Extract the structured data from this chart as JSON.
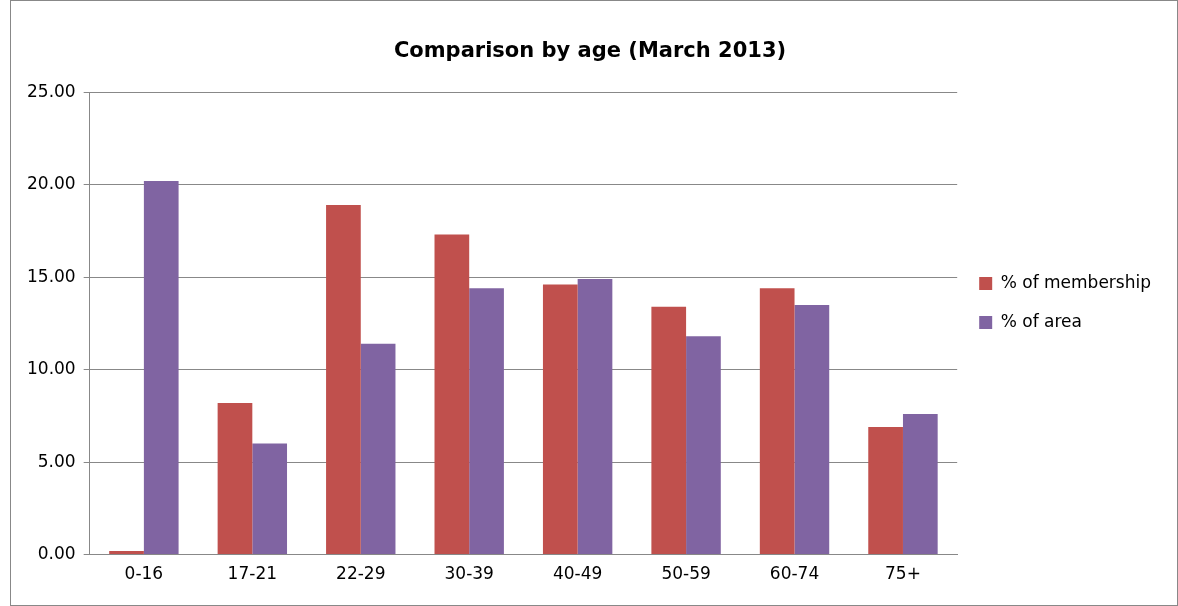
{
  "chart_data": {
    "type": "bar",
    "title": "Comparison by age (March 2013)",
    "categories": [
      "0-16",
      "17-21",
      "22-29",
      "30-39",
      "40-49",
      "50-59",
      "60-74",
      "75+"
    ],
    "series": [
      {
        "name": "% of membership",
        "color": "#c0504d",
        "values": [
          0.2,
          8.2,
          18.9,
          17.3,
          14.6,
          13.4,
          14.4,
          6.9
        ]
      },
      {
        "name": "% of area",
        "color": "#8064a2",
        "values": [
          20.2,
          6.0,
          11.4,
          14.4,
          14.9,
          11.8,
          13.5,
          7.6
        ]
      }
    ],
    "ylim": [
      0,
      25
    ],
    "yticks": [
      {
        "value": 0,
        "label": "0.00"
      },
      {
        "value": 5,
        "label": "5.00"
      },
      {
        "value": 10,
        "label": "10.00"
      },
      {
        "value": 15,
        "label": "15.00"
      },
      {
        "value": 20,
        "label": "20.00"
      },
      {
        "value": 25,
        "label": "25.00"
      }
    ],
    "grid": "y",
    "legend": "right"
  }
}
